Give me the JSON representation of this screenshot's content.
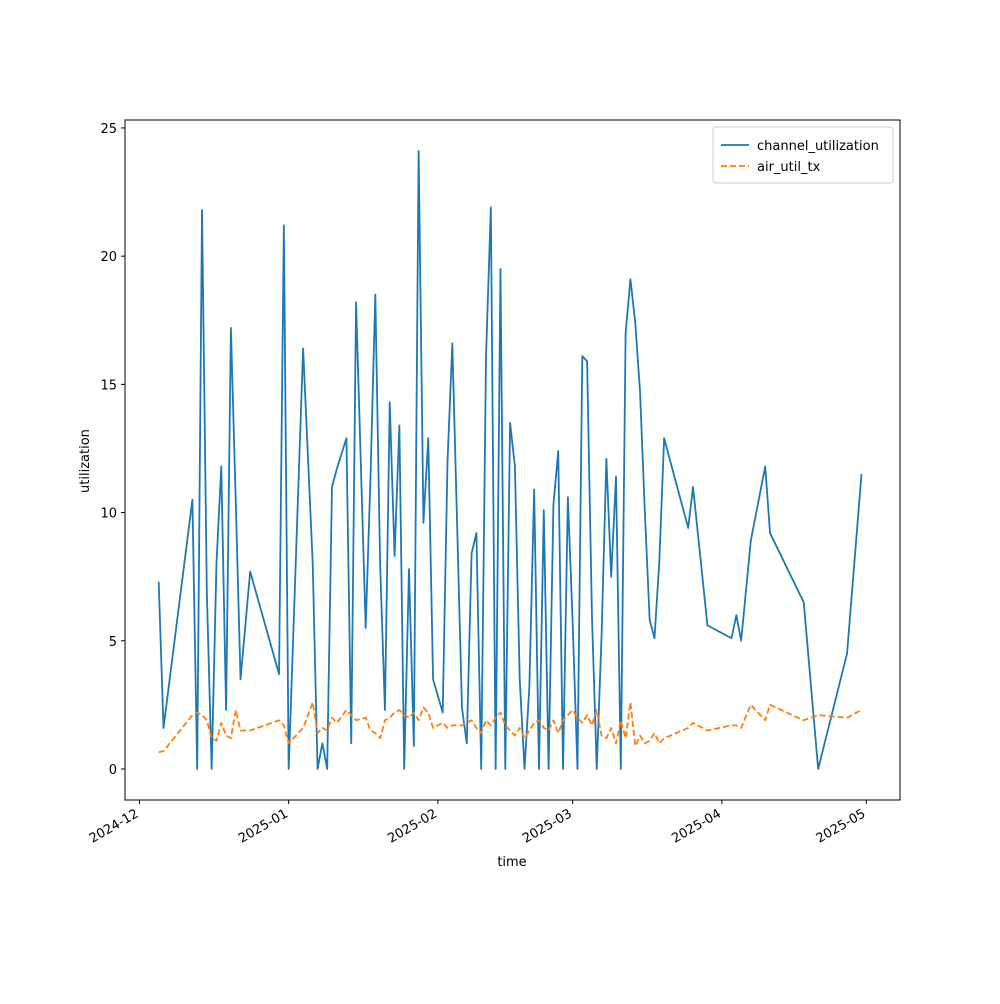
{
  "chart_data": {
    "type": "line",
    "xlabel": "time",
    "ylabel": "utilization",
    "x": [
      "2024-12-05",
      "2024-12-06",
      "2024-12-12",
      "2024-12-13",
      "2024-12-14",
      "2024-12-15",
      "2024-12-16",
      "2024-12-17",
      "2024-12-18",
      "2024-12-19",
      "2024-12-20",
      "2024-12-21",
      "2024-12-22",
      "2024-12-24",
      "2024-12-30",
      "2024-12-31",
      "2025-01-01",
      "2025-01-04",
      "2025-01-06",
      "2025-01-07",
      "2025-01-08",
      "2025-01-09",
      "2025-01-10",
      "2025-01-11",
      "2025-01-13",
      "2025-01-14",
      "2025-01-15",
      "2025-01-17",
      "2025-01-18",
      "2025-01-19",
      "2025-01-20",
      "2025-01-21",
      "2025-01-22",
      "2025-01-23",
      "2025-01-24",
      "2025-01-25",
      "2025-01-26",
      "2025-01-27",
      "2025-01-28",
      "2025-01-29",
      "2025-01-30",
      "2025-01-31",
      "2025-02-02",
      "2025-02-03",
      "2025-02-04",
      "2025-02-06",
      "2025-02-07",
      "2025-02-08",
      "2025-02-09",
      "2025-02-10",
      "2025-02-11",
      "2025-02-12",
      "2025-02-13",
      "2025-02-14",
      "2025-02-15",
      "2025-02-16",
      "2025-02-17",
      "2025-02-18",
      "2025-02-19",
      "2025-02-20",
      "2025-02-21",
      "2025-02-22",
      "2025-02-23",
      "2025-02-24",
      "2025-02-25",
      "2025-02-26",
      "2025-02-27",
      "2025-02-28",
      "2025-03-01",
      "2025-03-02",
      "2025-03-03",
      "2025-03-04",
      "2025-03-05",
      "2025-03-06",
      "2025-03-07",
      "2025-03-08",
      "2025-03-09",
      "2025-03-10",
      "2025-03-11",
      "2025-03-12",
      "2025-03-13",
      "2025-03-14",
      "2025-03-15",
      "2025-03-16",
      "2025-03-17",
      "2025-03-18",
      "2025-03-19",
      "2025-03-20",
      "2025-03-25",
      "2025-03-26",
      "2025-03-29",
      "2025-04-03",
      "2025-04-04",
      "2025-04-05",
      "2025-04-07",
      "2025-04-10",
      "2025-04-11",
      "2025-04-18",
      "2025-04-21",
      "2025-04-27",
      "2025-04-30"
    ],
    "series": [
      {
        "name": "channel_utilization",
        "color": "#1f77b4",
        "linestyle": "solid",
        "values": [
          7.3,
          1.6,
          10.5,
          0,
          21.8,
          6.9,
          0,
          8.0,
          11.8,
          2.3,
          17.2,
          10.5,
          3.5,
          7.7,
          3.7,
          21.2,
          0,
          16.4,
          8.0,
          0,
          1.0,
          0,
          11.0,
          11.7,
          12.9,
          1.0,
          18.2,
          5.5,
          11.4,
          18.5,
          8.0,
          2.3,
          14.3,
          8.3,
          13.4,
          0,
          7.8,
          0.9,
          24.1,
          9.6,
          12.9,
          3.5,
          2.2,
          12.0,
          16.6,
          2.4,
          1.0,
          8.4,
          9.2,
          0,
          16.1,
          21.9,
          0,
          19.5,
          0,
          13.5,
          11.8,
          3.5,
          0,
          3.2,
          10.9,
          0,
          10.1,
          0,
          10.3,
          12.4,
          0,
          10.6,
          5.7,
          0,
          16.1,
          15.9,
          6.0,
          0,
          5.2,
          12.1,
          7.5,
          11.4,
          0,
          17.0,
          19.1,
          17.4,
          14.7,
          10.0,
          5.8,
          5.1,
          8.1,
          12.9,
          9.4,
          11.0,
          5.6,
          5.1,
          6.0,
          5.0,
          8.9,
          11.8,
          9.2,
          6.5,
          0,
          4.5,
          11.5
        ]
      },
      {
        "name": "air_util_tx",
        "color": "#ff7f0e",
        "linestyle": "dashed",
        "values": [
          0.65,
          0.7,
          2.1,
          2.2,
          2.1,
          1.9,
          1.2,
          1.1,
          1.8,
          1.3,
          1.2,
          2.3,
          1.5,
          1.5,
          1.9,
          1.7,
          1.0,
          1.6,
          2.6,
          1.4,
          1.6,
          1.5,
          2.0,
          1.8,
          2.3,
          2.1,
          1.9,
          2.0,
          1.5,
          1.4,
          1.2,
          1.9,
          2.0,
          2.2,
          2.3,
          2.1,
          2.0,
          2.2,
          1.9,
          2.4,
          2.2,
          1.6,
          1.8,
          1.6,
          1.7,
          1.7,
          1.8,
          1.9,
          1.6,
          1.4,
          1.9,
          1.7,
          2.0,
          2.2,
          1.7,
          1.5,
          1.3,
          1.6,
          1.2,
          1.5,
          1.8,
          1.9,
          1.6,
          1.5,
          1.9,
          1.4,
          1.9,
          2.1,
          2.3,
          2.0,
          1.8,
          2.1,
          1.7,
          2.3,
          1.3,
          1.2,
          1.6,
          1.0,
          1.9,
          1.2,
          2.6,
          0.9,
          1.3,
          1.0,
          1.1,
          1.4,
          1.0,
          1.2,
          1.6,
          1.8,
          1.5,
          1.7,
          1.7,
          1.6,
          2.5,
          1.9,
          2.5,
          1.9,
          2.1,
          2.0,
          2.3
        ]
      }
    ],
    "xlim": [
      "2024-11-28",
      "2025-05-08"
    ],
    "xticks": [
      {
        "value": "2024-12-01",
        "label": "2024-12"
      },
      {
        "value": "2025-01-01",
        "label": "2025-01"
      },
      {
        "value": "2025-02-01",
        "label": "2025-02"
      },
      {
        "value": "2025-03-01",
        "label": "2025-03"
      },
      {
        "value": "2025-04-01",
        "label": "2025-04"
      },
      {
        "value": "2025-05-01",
        "label": "2025-05"
      }
    ],
    "ylim": [
      -1.21,
      25.31
    ],
    "yticks": [
      0,
      5,
      10,
      15,
      20,
      25
    ],
    "grid": false,
    "legend": "upper right"
  }
}
